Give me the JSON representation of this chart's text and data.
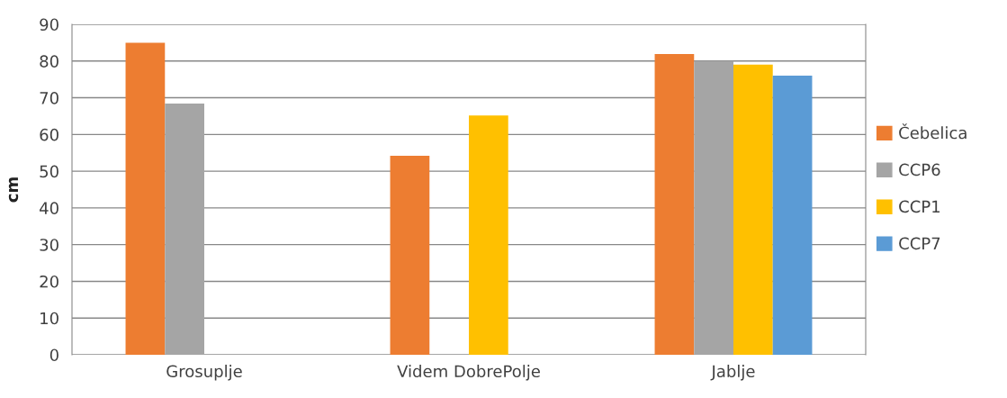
{
  "chart_data": {
    "type": "bar",
    "ylabel": "cm",
    "categories": [
      "Grosuplje",
      "Videm DobrePolje",
      "Jablje"
    ],
    "series": [
      {
        "name": "Čebelica",
        "color": "#ed7d31",
        "values": [
          85,
          54.2,
          81.9
        ]
      },
      {
        "name": "CCP6",
        "color": "#a5a5a5",
        "values": [
          68.4,
          null,
          80
        ]
      },
      {
        "name": "CCP1",
        "color": "#ffc000",
        "values": [
          null,
          65.2,
          79
        ]
      },
      {
        "name": "CCP7",
        "color": "#5b9bd5",
        "values": [
          null,
          null,
          76
        ]
      }
    ],
    "ylim": [
      0,
      90
    ],
    "yticks": [
      0,
      10,
      20,
      30,
      40,
      50,
      60,
      70,
      80,
      90
    ],
    "grid": "y",
    "legend": "right"
  }
}
